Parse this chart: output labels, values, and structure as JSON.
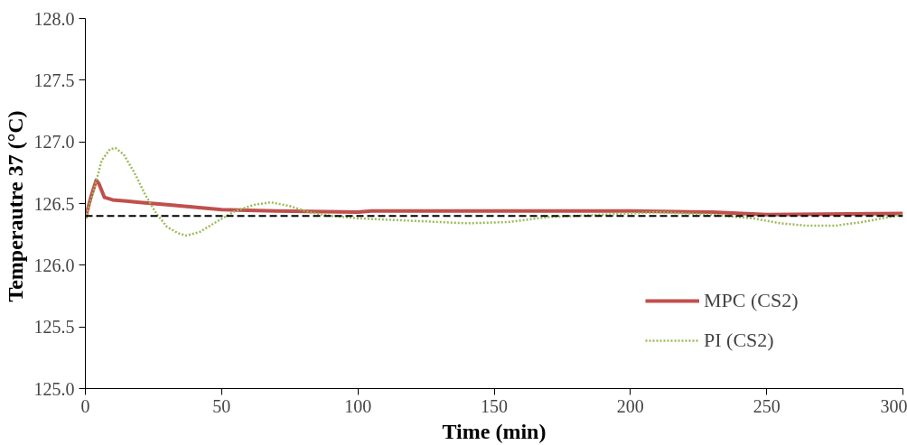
{
  "chart_data": {
    "type": "line",
    "xlabel": "Time (min)",
    "ylabel": "Temperautre 37  (°C)",
    "xlim": [
      0,
      300
    ],
    "xticks": [
      0,
      50,
      100,
      150,
      200,
      250,
      300
    ],
    "ylim": [
      125.0,
      128.0
    ],
    "yticks": [
      {
        "value": 125,
        "label": "125.0"
      },
      {
        "value": 125.5,
        "label": "125.5"
      },
      {
        "value": 126,
        "label": "126.0"
      },
      {
        "value": 126.5,
        "label": "126.5"
      },
      {
        "value": 127,
        "label": "127.0"
      },
      {
        "value": 127.5,
        "label": "127.5"
      },
      {
        "value": 128,
        "label": "128.0"
      }
    ],
    "grid": false,
    "legend": "right",
    "ref_lines": [
      {
        "axis": "y",
        "value": 126.4,
        "color": "#000000",
        "line_style": "dashed"
      }
    ],
    "series": [
      {
        "name": "MPC (CS2)",
        "color": "#c0504d",
        "line_style": "solid",
        "x": [
          0,
          2,
          4,
          5,
          7,
          10,
          15,
          20,
          25,
          30,
          40,
          50,
          70,
          100,
          105,
          150,
          200,
          230,
          250,
          300
        ],
        "values": [
          126.38,
          126.55,
          126.69,
          126.66,
          126.55,
          126.53,
          126.52,
          126.51,
          126.5,
          126.49,
          126.47,
          126.45,
          126.44,
          126.43,
          126.44,
          126.44,
          126.44,
          126.43,
          126.41,
          126.42
        ]
      },
      {
        "name": "PI (CS2)",
        "color": "#9bbb59",
        "line_style": "dotted",
        "x": [
          0,
          3,
          6,
          9,
          11,
          14,
          18,
          22,
          26,
          30,
          34,
          37,
          42,
          48,
          55,
          62,
          68,
          75,
          82,
          90,
          100,
          120,
          140,
          155,
          170,
          190,
          210,
          230,
          245,
          255,
          265,
          275,
          285,
          300
        ],
        "values": [
          126.38,
          126.6,
          126.85,
          126.94,
          126.95,
          126.9,
          126.75,
          126.57,
          126.42,
          126.31,
          126.26,
          126.24,
          126.27,
          126.35,
          126.44,
          126.49,
          126.51,
          126.48,
          126.43,
          126.4,
          126.38,
          126.36,
          126.34,
          126.35,
          126.39,
          126.41,
          126.43,
          126.41,
          126.38,
          126.34,
          126.32,
          126.32,
          126.35,
          126.41
        ]
      }
    ]
  }
}
